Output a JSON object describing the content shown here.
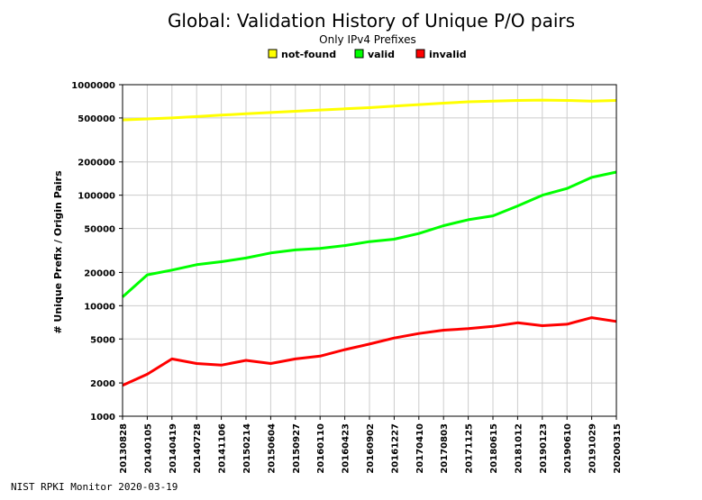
{
  "footer": "NIST RPKI Monitor 2020-03-19",
  "chart_data": {
    "type": "line",
    "title": "Global: Validation History of Unique P/O pairs",
    "subtitle": "Only IPv4 Prefixes",
    "ylabel": "# Unique Prefix / Origin Pairs",
    "xlabel": "",
    "y_scale": "log",
    "ylim": [
      1000,
      1000000
    ],
    "y_ticks": [
      1000,
      2000,
      5000,
      10000,
      20000,
      50000,
      100000,
      200000,
      500000,
      1000000
    ],
    "y_tick_labels": [
      "1000",
      "2000",
      "5000",
      "10000",
      "20000",
      "50000",
      "100000",
      "200000",
      "500000",
      "1000000"
    ],
    "x_tick_labels": [
      "20130828",
      "20140105",
      "20140419",
      "20140728",
      "20141106",
      "20150214",
      "20150604",
      "20150927",
      "20160110",
      "20160423",
      "20160902",
      "20161227",
      "20170410",
      "20170803",
      "20171125",
      "20180615",
      "20181012",
      "20190123",
      "20190610",
      "20191029",
      "20200315"
    ],
    "grid": true,
    "legend_position": "top-center",
    "series": [
      {
        "name": "not-found",
        "color": "#ffff00",
        "x": [
          "20130828",
          "20140105",
          "20140419",
          "20140728",
          "20141106",
          "20150214",
          "20150604",
          "20150927",
          "20160110",
          "20160423",
          "20160902",
          "20161227",
          "20170410",
          "20170803",
          "20171125",
          "20180615",
          "20181012",
          "20190123",
          "20190610",
          "20191029",
          "20200315"
        ],
        "values": [
          480000,
          490000,
          500000,
          515000,
          530000,
          545000,
          560000,
          575000,
          590000,
          605000,
          620000,
          640000,
          660000,
          680000,
          700000,
          710000,
          720000,
          725000,
          720000,
          710000,
          720000
        ]
      },
      {
        "name": "valid",
        "color": "#00ff00",
        "x": [
          "20130828",
          "20140105",
          "20140419",
          "20140728",
          "20141106",
          "20150214",
          "20150604",
          "20150927",
          "20160110",
          "20160423",
          "20160902",
          "20161227",
          "20170410",
          "20170803",
          "20171125",
          "20180615",
          "20181012",
          "20190123",
          "20190610",
          "20191029",
          "20200315"
        ],
        "values": [
          12000,
          19000,
          21000,
          23500,
          25000,
          27000,
          30000,
          32000,
          33000,
          35000,
          38000,
          40000,
          45000,
          53000,
          60000,
          65000,
          80000,
          100000,
          115000,
          145000,
          162000
        ]
      },
      {
        "name": "invalid",
        "color": "#ff0000",
        "x": [
          "20130828",
          "20140105",
          "20140419",
          "20140728",
          "20141106",
          "20150214",
          "20150604",
          "20150927",
          "20160110",
          "20160423",
          "20160902",
          "20161227",
          "20170410",
          "20170803",
          "20171125",
          "20180615",
          "20181012",
          "20190123",
          "20190610",
          "20191029",
          "20200315"
        ],
        "values": [
          1900,
          2400,
          3300,
          3000,
          2900,
          3200,
          3000,
          3300,
          3500,
          4000,
          4500,
          5100,
          5600,
          6000,
          6200,
          6500,
          7000,
          6600,
          6800,
          7800,
          7200
        ]
      }
    ]
  }
}
